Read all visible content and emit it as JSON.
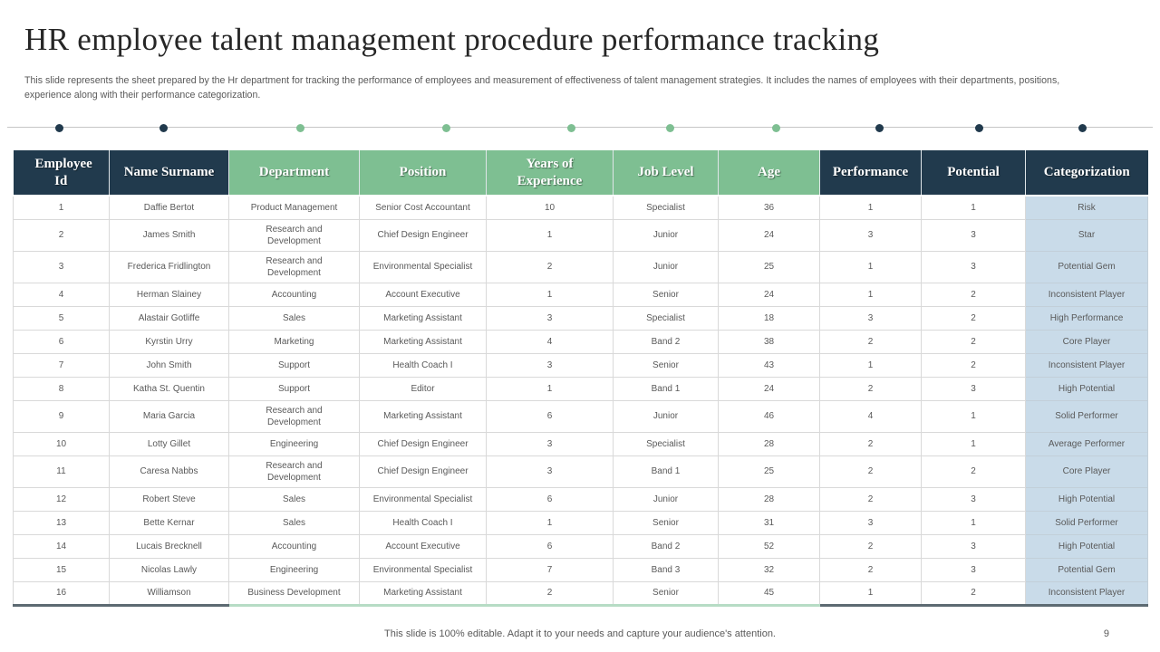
{
  "slide": {
    "title": "HR employee talent management procedure performance tracking",
    "subtitle": "This slide represents the sheet prepared by the Hr department for tracking the performance of employees and measurement of effectiveness of talent management strategies. It includes the names of employees with their departments, positions, experience along with their performance categorization.",
    "footer_note": "This slide is 100% editable. Adapt it to your needs and capture your audience's attention.",
    "page_number": "9"
  },
  "divider": {
    "dot_colors": [
      "navy",
      "navy",
      "green",
      "green",
      "green",
      "green",
      "green",
      "navy",
      "navy",
      "navy"
    ],
    "dot_positions_pct": [
      4.2,
      13.3,
      25.2,
      38.0,
      48.9,
      57.5,
      66.8,
      75.8,
      84.5,
      93.5
    ]
  },
  "theme_colors": {
    "navy": "#213a4d",
    "green": "#7ebf92",
    "categorization_fill": "#c9dbe9"
  },
  "chart_data": {
    "type": "table",
    "title": "HR employee talent management procedure performance tracking",
    "columns": [
      {
        "label": "Employee Id",
        "theme": "navy"
      },
      {
        "label": "Name Surname",
        "theme": "navy"
      },
      {
        "label": "Department",
        "theme": "green"
      },
      {
        "label": "Position",
        "theme": "green"
      },
      {
        "label": "Years of Experience",
        "theme": "green"
      },
      {
        "label": "Job Level",
        "theme": "green"
      },
      {
        "label": "Age",
        "theme": "green"
      },
      {
        "label": "Performance",
        "theme": "navy"
      },
      {
        "label": "Potential",
        "theme": "navy"
      },
      {
        "label": "Categorization",
        "theme": "navy"
      }
    ],
    "rows": [
      [
        "1",
        "Daffie Bertot",
        "Product Management",
        "Senior Cost Accountant",
        "10",
        "Specialist",
        "36",
        "1",
        "1",
        "Risk"
      ],
      [
        "2",
        "James Smith",
        "Research and Development",
        "Chief Design Engineer",
        "1",
        "Junior",
        "24",
        "3",
        "3",
        "Star"
      ],
      [
        "3",
        "Frederica Fridlington",
        "Research and Development",
        "Environmental Specialist",
        "2",
        "Junior",
        "25",
        "1",
        "3",
        "Potential Gem"
      ],
      [
        "4",
        "Herman Slainey",
        "Accounting",
        "Account Executive",
        "1",
        "Senior",
        "24",
        "1",
        "2",
        "Inconsistent Player"
      ],
      [
        "5",
        "Alastair Gotliffe",
        "Sales",
        "Marketing Assistant",
        "3",
        "Specialist",
        "18",
        "3",
        "2",
        "High Performance"
      ],
      [
        "6",
        "Kyrstin Urry",
        "Marketing",
        "Marketing Assistant",
        "4",
        "Band 2",
        "38",
        "2",
        "2",
        "Core Player"
      ],
      [
        "7",
        "John Smith",
        "Support",
        "Health Coach I",
        "3",
        "Senior",
        "43",
        "1",
        "2",
        "Inconsistent Player"
      ],
      [
        "8",
        "Katha St. Quentin",
        "Support",
        "Editor",
        "1",
        "Band 1",
        "24",
        "2",
        "3",
        "High Potential"
      ],
      [
        "9",
        "Maria Garcia",
        "Research and Development",
        "Marketing Assistant",
        "6",
        "Junior",
        "46",
        "4",
        "1",
        "Solid Performer"
      ],
      [
        "10",
        "Lotty Gillet",
        "Engineering",
        "Chief Design Engineer",
        "3",
        "Specialist",
        "28",
        "2",
        "1",
        "Average Performer"
      ],
      [
        "11",
        "Caresa Nabbs",
        "Research and Development",
        "Chief Design Engineer",
        "3",
        "Band 1",
        "25",
        "2",
        "2",
        "Core Player"
      ],
      [
        "12",
        "Robert Steve",
        "Sales",
        "Environmental Specialist",
        "6",
        "Junior",
        "28",
        "2",
        "3",
        "High Potential"
      ],
      [
        "13",
        "Bette Kernar",
        "Sales",
        "Health Coach I",
        "1",
        "Senior",
        "31",
        "3",
        "1",
        "Solid Performer"
      ],
      [
        "14",
        "Lucais Brecknell",
        "Accounting",
        "Account Executive",
        "6",
        "Band 2",
        "52",
        "2",
        "3",
        "High Potential"
      ],
      [
        "15",
        "Nicolas Lawly",
        "Engineering",
        "Environmental Specialist",
        "7",
        "Band 3",
        "32",
        "2",
        "3",
        "Potential Gem"
      ],
      [
        "16",
        "Williamson",
        "Business Development",
        "Marketing Assistant",
        "2",
        "Senior",
        "45",
        "1",
        "2",
        "Inconsistent Player"
      ]
    ]
  }
}
